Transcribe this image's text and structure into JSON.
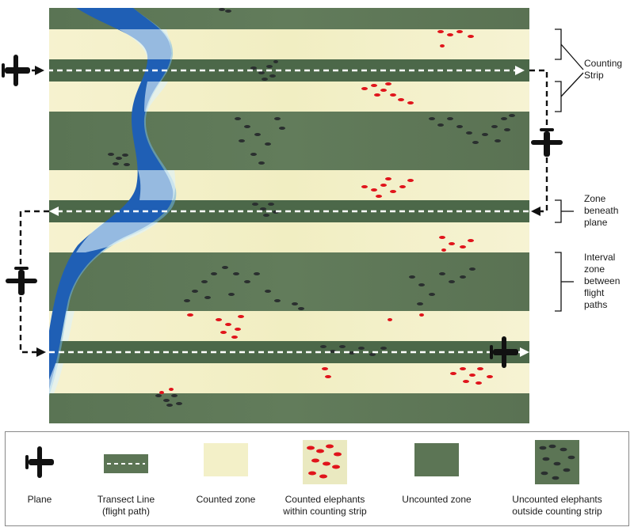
{
  "annotations": {
    "counting_strip": "Counting\nStrip",
    "zone_beneath_plane": "Zone\nbeneath\nplane",
    "interval_zone": "Interval\nzone\nbetween\nflight\npaths"
  },
  "legend": [
    {
      "key": "plane",
      "label": "Plane"
    },
    {
      "key": "transect",
      "label": "Transect Line\n(flight path)"
    },
    {
      "key": "counted_zone",
      "label": "Counted zone"
    },
    {
      "key": "counted_elephants",
      "label": "Counted elephants\nwithin counting strip"
    },
    {
      "key": "uncounted_zone",
      "label": "Uncounted zone"
    },
    {
      "key": "uncounted_elephants",
      "label": "Uncounted elephants\noutside counting strip"
    }
  ],
  "colors": {
    "uncounted_zone": "#5c7555",
    "counted_zone": "#f3f0c8",
    "transect_band": "#496446",
    "river_dark": "#1f5fb5",
    "river_light": "#a8d6f2",
    "counted_elephant": "#e0141b",
    "uncounted_elephant": "#2a2f2f",
    "flight_path": "#ffffff",
    "connector": "#111111"
  },
  "icons": {
    "plane": "plane-icon",
    "bracket": "bracket-icon"
  }
}
